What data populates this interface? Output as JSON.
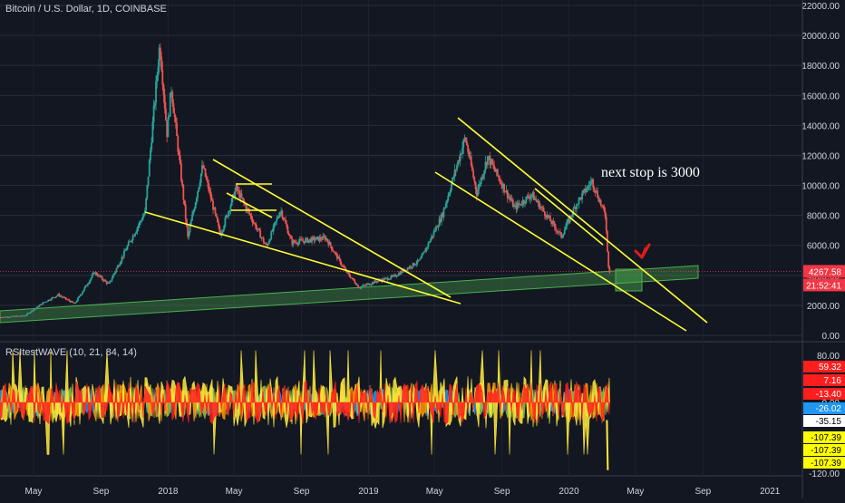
{
  "header": {
    "symbol_title": "Bitcoin / U.S. Dollar, 1D, COINBASE",
    "indicator_title": "RSItestWAVE (10, 21, 84, 14)"
  },
  "annotation": {
    "text": "next stop is 3000"
  },
  "price_scale": {
    "ticks": [
      "22000.00",
      "20000.00",
      "18000.00",
      "16000.00",
      "14000.00",
      "12000.00",
      "10000.00",
      "8000.00",
      "6000.00",
      "4000.00",
      "2000.00",
      "0.00"
    ],
    "current_price": "4267.58",
    "countdown": "21:52:41"
  },
  "indicator_scale": {
    "ticks": [
      "80.00",
      "0.00",
      "-120.00"
    ],
    "badges": [
      {
        "text": "59.32",
        "color": "#ff1e1e"
      },
      {
        "text": "7.16",
        "color": "#ff1e1e"
      },
      {
        "text": "-13.40",
        "color": "#ff1e1e"
      },
      {
        "text": "-26.02",
        "color": "#2196f3"
      },
      {
        "text": "-35.15",
        "color": "#ffffff"
      },
      {
        "text": "-107.39",
        "color": "#ffff00"
      },
      {
        "text": "-107.39",
        "color": "#ffff00"
      },
      {
        "text": "-107.39",
        "color": "#ffff00"
      }
    ]
  },
  "time_axis": {
    "labels": [
      "May",
      "Sep",
      "2018",
      "May",
      "Sep",
      "2019",
      "May",
      "Sep",
      "2020",
      "May",
      "Sep",
      "2021"
    ]
  },
  "colors": {
    "background": "#131722",
    "trendline": "#ffff33",
    "channel": "#4caf50",
    "candle_up": "#26a69a",
    "candle_down": "#ef5350",
    "price_line": "#f23645",
    "arrow": "#e01b1b"
  },
  "chart_data": {
    "type": "candlestick",
    "title": "Bitcoin / U.S. Dollar, 1D, COINBASE",
    "ylim": [
      0,
      22000
    ],
    "x_range": [
      "2017-03",
      "2021-03"
    ],
    "price_points": [
      [
        "2017-03-01",
        1200
      ],
      [
        "2017-04-15",
        1300
      ],
      [
        "2017-05-20",
        2200
      ],
      [
        "2017-06-15",
        2700
      ],
      [
        "2017-07-15",
        2100
      ],
      [
        "2017-08-20",
        4200
      ],
      [
        "2017-09-15",
        3400
      ],
      [
        "2017-10-20",
        6000
      ],
      [
        "2017-11-20",
        8200
      ],
      [
        "2017-12-17",
        19500
      ],
      [
        "2017-12-30",
        13500
      ],
      [
        "2018-01-07",
        16500
      ],
      [
        "2018-02-06",
        6500
      ],
      [
        "2018-03-05",
        11300
      ],
      [
        "2018-04-06",
        6700
      ],
      [
        "2018-05-05",
        9800
      ],
      [
        "2018-06-29",
        5900
      ],
      [
        "2018-07-25",
        8400
      ],
      [
        "2018-08-14",
        6200
      ],
      [
        "2018-10-15",
        6500
      ],
      [
        "2018-11-20",
        4300
      ],
      [
        "2018-12-15",
        3200
      ],
      [
        "2019-01-15",
        3600
      ],
      [
        "2019-02-15",
        3900
      ],
      [
        "2019-04-05",
        5000
      ],
      [
        "2019-05-15",
        8000
      ],
      [
        "2019-06-26",
        13200
      ],
      [
        "2019-07-17",
        9500
      ],
      [
        "2019-08-06",
        11900
      ],
      [
        "2019-09-24",
        8500
      ],
      [
        "2019-10-25",
        9400
      ],
      [
        "2019-12-18",
        6600
      ],
      [
        "2020-01-15",
        8800
      ],
      [
        "2020-02-12",
        10300
      ],
      [
        "2020-03-08",
        7900
      ],
      [
        "2020-03-12",
        4800
      ],
      [
        "2020-03-15",
        4268
      ]
    ],
    "current_price": 4267.58,
    "indicator": {
      "name": "RSItestWAVE",
      "params": [
        10,
        21,
        84,
        14
      ],
      "ylim": [
        -120,
        80
      ]
    }
  }
}
